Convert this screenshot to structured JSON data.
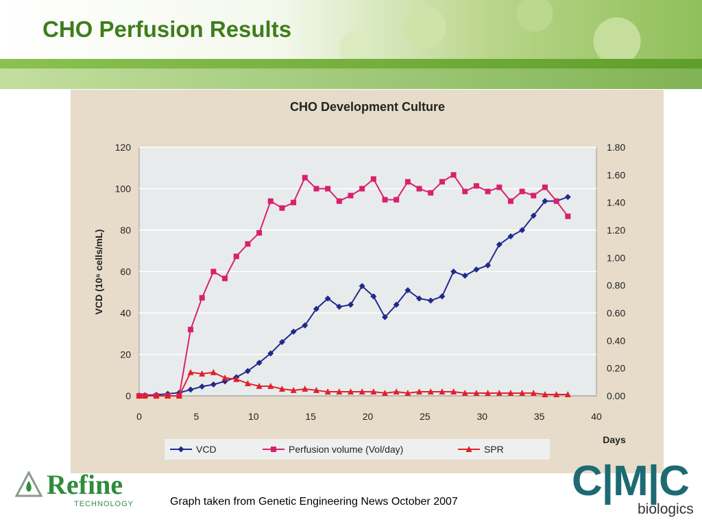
{
  "slide": {
    "title": "CHO Perfusion Results",
    "caption": "Graph taken from Genetic Engineering News October 2007"
  },
  "logos": {
    "left": {
      "name": "Refine",
      "subtitle": "TECHNOLOGY"
    },
    "right": {
      "letters": "C|M|C",
      "subtitle": "biologics"
    }
  },
  "colors": {
    "title_green": "#3f7d1c",
    "vcd": "#1f2a8c",
    "perfusion": "#d8206e",
    "spr": "#e0202a",
    "plot_bg": "#e8ebeb",
    "panel_bg": "#e6dcc9"
  },
  "chart_data": {
    "type": "line",
    "title": "CHO Development Culture",
    "xlabel": "Days",
    "ylabel": "VCD (10⁶ cells/mL)",
    "xlim": [
      0,
      40
    ],
    "ylim": [
      0,
      120
    ],
    "y2lim": [
      0,
      1.8
    ],
    "x_ticks": [
      0,
      5,
      10,
      15,
      20,
      25,
      30,
      35,
      40
    ],
    "x_tick_labels": [
      "0",
      "5",
      "10",
      "15",
      "20",
      "25",
      "30",
      "35",
      "40"
    ],
    "y_ticks": [
      0,
      20,
      40,
      60,
      80,
      100,
      120
    ],
    "y_tick_labels": [
      "0",
      "20",
      "40",
      "60",
      "80",
      "100",
      "120"
    ],
    "y2_ticks": [
      0,
      0.2,
      0.4,
      0.6,
      0.8,
      1.0,
      1.2,
      1.4,
      1.6,
      1.8
    ],
    "y2_tick_labels": [
      "0.00",
      "0.20",
      "0.40",
      "0.60",
      "0.80",
      "1.00",
      "1.20",
      "1.40",
      "1.60",
      "1.80"
    ],
    "grid": true,
    "legend_position": "bottom",
    "series": [
      {
        "name": "VCD",
        "axis": "left",
        "marker": "diamond",
        "color": "#1f2a8c",
        "x": [
          0,
          0.5,
          1.5,
          2.5,
          3.5,
          4.5,
          5.5,
          6.5,
          7.5,
          8.5,
          9.5,
          10.5,
          11.5,
          12.5,
          13.5,
          14.5,
          15.5,
          16.5,
          17.5,
          18.5,
          19.5,
          20.5,
          21.5,
          22.5,
          23.5,
          24.5,
          25.5,
          26.5,
          27.5,
          28.5,
          29.5,
          30.5,
          31.5,
          32.5,
          33.5,
          34.5,
          35.5,
          36.5,
          37.5
        ],
        "y": [
          0.2,
          0.3,
          0.5,
          1,
          1.5,
          3,
          4.5,
          5.5,
          7,
          9,
          12,
          16,
          20.5,
          26,
          31,
          34,
          42,
          47,
          43,
          44,
          53,
          48,
          38,
          44,
          51,
          47,
          46,
          48,
          60,
          58,
          61,
          63,
          73,
          77,
          80,
          87,
          94,
          94,
          96
        ]
      },
      {
        "name": "Perfusion volume (Vol/day)",
        "axis": "right",
        "marker": "square",
        "color": "#d8206e",
        "x": [
          0,
          0.5,
          1.5,
          2.5,
          3.5,
          4.5,
          5.5,
          6.5,
          7.5,
          8.5,
          9.5,
          10.5,
          11.5,
          12.5,
          13.5,
          14.5,
          15.5,
          16.5,
          17.5,
          18.5,
          19.5,
          20.5,
          21.5,
          22.5,
          23.5,
          24.5,
          25.5,
          26.5,
          27.5,
          28.5,
          29.5,
          30.5,
          31.5,
          32.5,
          33.5,
          34.5,
          35.5,
          36.5,
          37.5
        ],
        "y": [
          0,
          0,
          0,
          0,
          0,
          0.48,
          0.71,
          0.9,
          0.85,
          1.01,
          1.1,
          1.18,
          1.41,
          1.36,
          1.4,
          1.58,
          1.5,
          1.5,
          1.41,
          1.45,
          1.5,
          1.57,
          1.42,
          1.42,
          1.55,
          1.5,
          1.47,
          1.55,
          1.6,
          1.48,
          1.52,
          1.48,
          1.51,
          1.41,
          1.48,
          1.45,
          1.51,
          1.41,
          1.3
        ]
      },
      {
        "name": "SPR",
        "axis": "right",
        "marker": "triangle",
        "color": "#e0202a",
        "x": [
          0,
          0.5,
          1.5,
          2.5,
          3.5,
          4.5,
          5.5,
          6.5,
          7.5,
          8.5,
          9.5,
          10.5,
          11.5,
          12.5,
          13.5,
          14.5,
          15.5,
          16.5,
          17.5,
          18.5,
          19.5,
          20.5,
          21.5,
          22.5,
          23.5,
          24.5,
          25.5,
          26.5,
          27.5,
          28.5,
          29.5,
          30.5,
          31.5,
          32.5,
          33.5,
          34.5,
          35.5,
          36.5,
          37.5
        ],
        "y": [
          0,
          0,
          0,
          0,
          0,
          0.17,
          0.16,
          0.17,
          0.13,
          0.12,
          0.09,
          0.07,
          0.07,
          0.05,
          0.04,
          0.05,
          0.04,
          0.03,
          0.03,
          0.03,
          0.03,
          0.03,
          0.02,
          0.03,
          0.02,
          0.03,
          0.03,
          0.03,
          0.03,
          0.02,
          0.02,
          0.02,
          0.02,
          0.02,
          0.02,
          0.02,
          0.01,
          0.01,
          0.01
        ]
      }
    ]
  }
}
